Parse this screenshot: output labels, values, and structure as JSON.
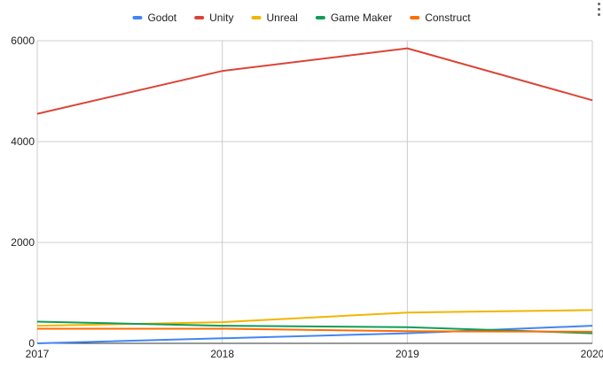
{
  "chart_data": {
    "type": "line",
    "title": "",
    "xlabel": "",
    "ylabel": "",
    "x": [
      "2017",
      "2018",
      "2019",
      "2020"
    ],
    "ylim": [
      0,
      6000
    ],
    "yticks": [
      "0",
      "2000",
      "4000",
      "6000"
    ],
    "grid": true,
    "legend_position": "top",
    "series": [
      {
        "name": "Godot",
        "color": "#4285f4",
        "values": [
          0,
          100,
          200,
          350
        ]
      },
      {
        "name": "Unity",
        "color": "#db4437",
        "values": [
          4550,
          5400,
          5850,
          4820
        ]
      },
      {
        "name": "Unreal",
        "color": "#f4b400",
        "values": [
          350,
          420,
          610,
          660
        ]
      },
      {
        "name": "Game Maker",
        "color": "#0f9d58",
        "values": [
          430,
          350,
          320,
          200
        ]
      },
      {
        "name": "Construct",
        "color": "#ff6d01",
        "values": [
          290,
          290,
          240,
          230
        ]
      }
    ]
  }
}
